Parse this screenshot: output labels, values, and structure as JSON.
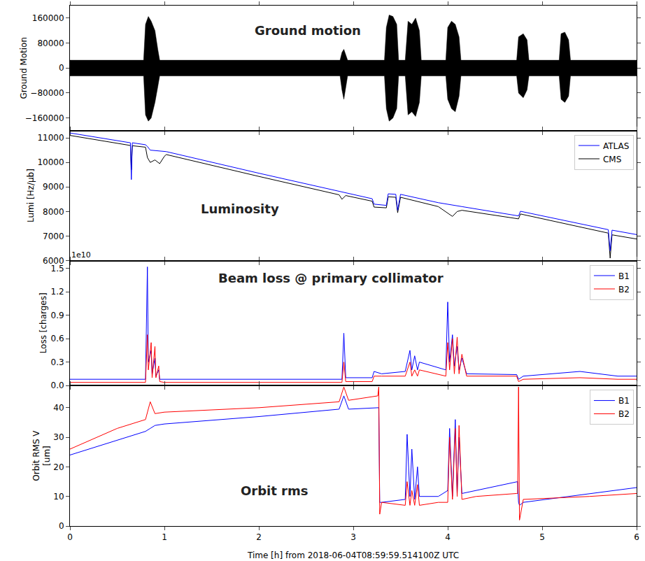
{
  "chart_data": [
    {
      "type": "band",
      "title": "Ground motion",
      "ylabel": "Ground Motion",
      "color": "#000000",
      "x": [
        0,
        0.78,
        0.8,
        0.83,
        0.86,
        0.9,
        0.93,
        0.95,
        2.86,
        2.88,
        2.9,
        2.92,
        2.94,
        3.33,
        3.35,
        3.38,
        3.42,
        3.46,
        3.48,
        3.55,
        3.58,
        3.62,
        3.66,
        3.7,
        3.72,
        3.98,
        4.0,
        4.04,
        4.08,
        4.12,
        4.14,
        4.73,
        4.75,
        4.8,
        4.84,
        4.86,
        5.18,
        5.2,
        5.24,
        5.28,
        5.3,
        6.0
      ],
      "upper": [
        25000,
        25000,
        140000,
        165000,
        150000,
        120000,
        60000,
        25000,
        25000,
        50000,
        60000,
        40000,
        25000,
        25000,
        130000,
        170000,
        165000,
        140000,
        25000,
        25000,
        150000,
        140000,
        160000,
        120000,
        25000,
        25000,
        130000,
        150000,
        140000,
        100000,
        25000,
        25000,
        100000,
        110000,
        90000,
        25000,
        25000,
        110000,
        115000,
        90000,
        25000,
        25000
      ],
      "lower": [
        -25000,
        -25000,
        -150000,
        -170000,
        -160000,
        -110000,
        -60000,
        -25000,
        -25000,
        -70000,
        -100000,
        -60000,
        -25000,
        -25000,
        -130000,
        -170000,
        -160000,
        -130000,
        -25000,
        -25000,
        -150000,
        -140000,
        -155000,
        -110000,
        -25000,
        -25000,
        -100000,
        -130000,
        -140000,
        -90000,
        -25000,
        -25000,
        -80000,
        -95000,
        -70000,
        -25000,
        -25000,
        -100000,
        -110000,
        -90000,
        -25000,
        -25000
      ],
      "xlim": [
        0,
        6
      ],
      "xticks": [
        0,
        1,
        2,
        3,
        4,
        5,
        6
      ],
      "ylim": [
        -200000,
        200000
      ],
      "yticks": [
        {
          "value": -160000,
          "label": "−160000"
        },
        {
          "value": -80000,
          "label": "−80000"
        },
        0,
        80000,
        160000
      ],
      "grid": false,
      "tick_labels": "y"
    },
    {
      "type": "line",
      "title": "Luminosity",
      "ylabel": "Lumi [Hz/μb]",
      "x": [
        0,
        0.6,
        0.64,
        0.65,
        0.66,
        0.8,
        0.82,
        0.85,
        0.9,
        0.95,
        1.0,
        1.02,
        2.0,
        2.85,
        2.88,
        2.92,
        3.2,
        3.22,
        3.35,
        3.37,
        3.45,
        3.47,
        3.5,
        3.9,
        4.0,
        4.05,
        4.1,
        4.15,
        4.75,
        4.77,
        5.7,
        5.72,
        5.74,
        6.0
      ],
      "series": [
        {
          "name": "CMS",
          "color": "#000000",
          "values": [
            11100,
            10700,
            10690,
            9700,
            10680,
            10620,
            10200,
            10000,
            10100,
            9950,
            10250,
            10320,
            9430,
            8680,
            8500,
            8650,
            8420,
            8180,
            8150,
            8600,
            8580,
            7950,
            8580,
            8200,
            7950,
            7800,
            8000,
            8050,
            7700,
            7900,
            7120,
            6100,
            7050,
            6880
          ]
        },
        {
          "name": "ATLAS",
          "color": "#0000ff",
          "values": [
            11200,
            10830,
            10800,
            9300,
            10800,
            10720,
            10650,
            10500,
            10480,
            10470,
            10450,
            10440,
            9560,
            8820,
            8800,
            8780,
            8520,
            8300,
            8250,
            8720,
            8700,
            8050,
            8700,
            8360,
            8300,
            8260,
            8230,
            8200,
            7820,
            8010,
            7260,
            6400,
            7240,
            7060
          ]
        }
      ],
      "xlim": [
        0,
        6
      ],
      "xticks": [
        0,
        1,
        2,
        3,
        4,
        5,
        6
      ],
      "ylim": [
        6000,
        11300
      ],
      "yticks": [
        6000,
        7000,
        8000,
        9000,
        10000,
        11000
      ],
      "grid": false,
      "legend": "upper right",
      "tick_labels": "y"
    },
    {
      "type": "line",
      "title": "Beam loss @ primary collimator",
      "ylabel": "Loss [charges]",
      "annotations": [
        "1e10"
      ],
      "x": [
        0,
        0.8,
        0.82,
        0.83,
        0.86,
        0.87,
        0.9,
        0.91,
        0.94,
        0.95,
        1.0,
        2.88,
        2.9,
        2.92,
        3.2,
        3.22,
        3.3,
        3.55,
        3.6,
        3.62,
        3.65,
        3.68,
        3.7,
        3.98,
        4.0,
        4.02,
        4.05,
        4.07,
        4.1,
        4.12,
        4.15,
        4.2,
        4.73,
        4.75,
        4.8,
        5.4,
        5.8,
        6.0
      ],
      "series": [
        {
          "name": "B1",
          "color": "#0000ff",
          "values": [
            0.08,
            0.08,
            1.52,
            0.3,
            0.45,
            0.15,
            0.35,
            0.12,
            0.2,
            0.08,
            0.08,
            0.08,
            0.67,
            0.1,
            0.1,
            0.18,
            0.15,
            0.18,
            0.45,
            0.2,
            0.38,
            0.2,
            0.3,
            0.2,
            1.07,
            0.3,
            0.65,
            0.25,
            0.5,
            0.2,
            0.35,
            0.15,
            0.14,
            0.08,
            0.12,
            0.18,
            0.12,
            0.12
          ]
        },
        {
          "name": "B2",
          "color": "#ff0000",
          "values": [
            0.04,
            0.04,
            0.65,
            0.2,
            0.55,
            0.1,
            0.5,
            0.1,
            0.25,
            0.05,
            0.04,
            0.04,
            0.3,
            0.05,
            0.05,
            0.12,
            0.12,
            0.12,
            0.3,
            0.12,
            0.2,
            0.12,
            0.2,
            0.12,
            0.55,
            0.2,
            0.6,
            0.15,
            0.62,
            0.15,
            0.4,
            0.12,
            0.12,
            0.05,
            0.08,
            0.1,
            0.08,
            0.08
          ]
        }
      ],
      "xlim": [
        0,
        6
      ],
      "xticks": [
        0,
        1,
        2,
        3,
        4,
        5,
        6
      ],
      "ylim": [
        0,
        1.6
      ],
      "yticks": [
        {
          "value": 0,
          "label": "0.0"
        },
        0.3,
        0.6,
        0.9,
        1.2,
        1.5
      ],
      "grid": false,
      "legend": "upper right",
      "tick_labels": "y"
    },
    {
      "type": "line",
      "title": "Orbit rms",
      "ylabel": "Orbit RMS V\n[um]",
      "xlabel": "Time [h] from 2018-06-04T08:59:59.514100Z UTC",
      "x": [
        0,
        0.5,
        0.8,
        0.85,
        0.9,
        1.0,
        2.0,
        2.85,
        2.9,
        2.95,
        3.26,
        3.27,
        3.28,
        3.3,
        3.55,
        3.57,
        3.6,
        3.62,
        3.65,
        3.68,
        3.7,
        3.9,
        4.0,
        4.02,
        4.05,
        4.08,
        4.1,
        4.12,
        4.15,
        4.3,
        4.73,
        4.74,
        4.75,
        4.76,
        4.8,
        5.5,
        6.0
      ],
      "series": [
        {
          "name": "B1",
          "color": "#0000ff",
          "values": [
            24,
            29,
            32,
            33,
            34,
            34.5,
            37,
            39.5,
            44,
            39.5,
            40,
            40,
            8,
            8,
            9,
            31,
            10,
            26,
            9,
            20,
            10,
            10,
            12,
            33,
            10,
            36,
            11,
            30,
            11,
            12,
            15,
            15,
            8,
            7,
            8,
            11,
            13
          ]
        },
        {
          "name": "B2",
          "color": "#ff0000",
          "values": [
            26,
            33,
            36,
            42,
            38,
            38.5,
            40,
            42,
            47,
            42.5,
            44,
            47,
            4,
            8,
            7,
            15,
            7,
            12,
            7,
            14,
            7,
            8,
            8,
            30,
            9,
            33,
            10,
            34,
            9,
            10,
            11,
            11,
            47,
            2,
            9,
            10,
            11
          ]
        }
      ],
      "xlim": [
        0,
        6
      ],
      "xticks": [
        0,
        1,
        2,
        3,
        4,
        5,
        6
      ],
      "ylim": [
        0,
        47.5
      ],
      "yticks": [
        0,
        10,
        20,
        30,
        40
      ],
      "grid": false,
      "legend": "upper right"
    }
  ]
}
